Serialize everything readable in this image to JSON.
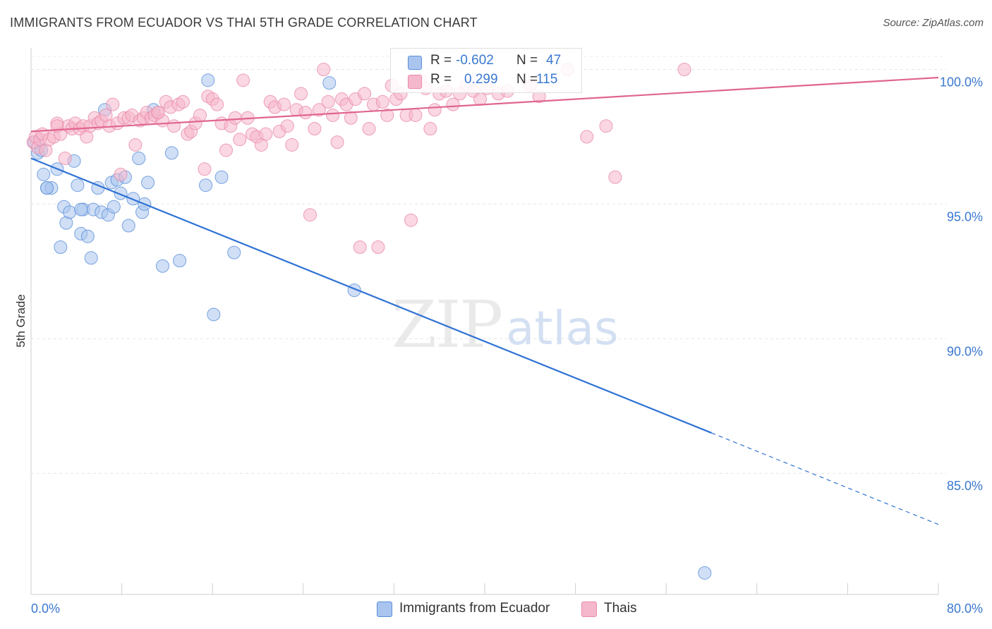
{
  "title": "IMMIGRANTS FROM ECUADOR VS THAI 5TH GRADE CORRELATION CHART",
  "source": "Source: ZipAtlas.com",
  "watermark": {
    "zip": "ZIP",
    "atlas": "atlas"
  },
  "legend_stats": [
    {
      "r_label": "R =",
      "r_value": "-0.602",
      "n_label": "N =",
      "n_value": "47",
      "color": "#a9c4ef"
    },
    {
      "r_label": "R =",
      "r_value": "0.299",
      "n_label": "N =",
      "n_value": "115",
      "color": "#f5b7cb"
    }
  ],
  "bottom_legend": [
    {
      "label": "Immigrants from Ecuador",
      "color": "#a9c4ef"
    },
    {
      "label": "Thais",
      "color": "#f5b7cb"
    }
  ],
  "chart_data": {
    "type": "scatter",
    "ylabel": "5th Grade",
    "xlim": [
      0,
      80
    ],
    "ylim": [
      80.5,
      100.8
    ],
    "x_tick_labels": [
      "0.0%",
      "80.0%"
    ],
    "y_ticks": [
      {
        "value": 85,
        "label": "85.0%"
      },
      {
        "value": 90,
        "label": "90.0%"
      },
      {
        "value": 95,
        "label": "95.0%"
      },
      {
        "value": 100,
        "label": "100.0%"
      }
    ],
    "grid": true,
    "series": [
      {
        "name": "Immigrants from Ecuador",
        "color": "#a9c4ef",
        "stroke": "#5a8fd8",
        "line_color": "#2f72d4",
        "trend": {
          "x0": 0,
          "y0": 96.7,
          "x1": 60,
          "y1": 86.5,
          "dash_to_x": 80,
          "dash_to_y": 83.1
        },
        "points": [
          [
            0.3,
            97.3
          ],
          [
            0.6,
            96.9
          ],
          [
            0.9,
            97.0
          ],
          [
            1.1,
            96.1
          ],
          [
            1.4,
            95.6
          ],
          [
            1.8,
            95.6
          ],
          [
            2.3,
            96.3
          ],
          [
            2.6,
            93.4
          ],
          [
            2.9,
            94.9
          ],
          [
            3.1,
            94.3
          ],
          [
            3.4,
            94.7
          ],
          [
            3.8,
            96.6
          ],
          [
            4.1,
            95.7
          ],
          [
            4.4,
            93.9
          ],
          [
            4.6,
            94.8
          ],
          [
            5.0,
            93.8
          ],
          [
            5.3,
            93.0
          ],
          [
            5.5,
            94.8
          ],
          [
            5.9,
            95.6
          ],
          [
            6.2,
            94.7
          ],
          [
            6.5,
            98.5
          ],
          [
            6.8,
            94.6
          ],
          [
            7.1,
            95.8
          ],
          [
            7.3,
            94.9
          ],
          [
            7.6,
            95.9
          ],
          [
            7.9,
            95.4
          ],
          [
            8.3,
            96.0
          ],
          [
            8.6,
            94.2
          ],
          [
            9.0,
            95.2
          ],
          [
            9.5,
            96.7
          ],
          [
            9.8,
            94.7
          ],
          [
            10.0,
            95.0
          ],
          [
            10.3,
            95.8
          ],
          [
            10.8,
            98.5
          ],
          [
            11.6,
            92.7
          ],
          [
            12.4,
            96.9
          ],
          [
            13.1,
            92.9
          ],
          [
            15.4,
            95.7
          ],
          [
            15.6,
            99.6
          ],
          [
            16.1,
            90.9
          ],
          [
            16.8,
            96.0
          ],
          [
            17.9,
            93.2
          ],
          [
            26.3,
            99.5
          ],
          [
            28.5,
            91.8
          ],
          [
            59.4,
            81.3
          ],
          [
            1.4,
            95.6
          ],
          [
            4.4,
            94.8
          ]
        ]
      },
      {
        "name": "Thais",
        "color": "#f5b7cb",
        "stroke": "#e88aa9",
        "line_color": "#e06590",
        "trend": {
          "x0": 0,
          "y0": 97.7,
          "x1": 80,
          "y1": 99.7
        },
        "points": [
          [
            0.2,
            97.3
          ],
          [
            0.4,
            97.5
          ],
          [
            0.6,
            97.1
          ],
          [
            0.8,
            97.4
          ],
          [
            1.0,
            97.6
          ],
          [
            1.3,
            97.0
          ],
          [
            1.6,
            97.4
          ],
          [
            2.0,
            97.5
          ],
          [
            2.3,
            98.0
          ],
          [
            2.6,
            97.6
          ],
          [
            3.0,
            96.7
          ],
          [
            3.3,
            97.9
          ],
          [
            3.6,
            97.8
          ],
          [
            3.9,
            98.0
          ],
          [
            4.3,
            97.8
          ],
          [
            4.6,
            97.9
          ],
          [
            4.9,
            97.5
          ],
          [
            5.2,
            97.9
          ],
          [
            5.6,
            98.2
          ],
          [
            5.9,
            98.0
          ],
          [
            6.2,
            98.1
          ],
          [
            6.6,
            98.3
          ],
          [
            6.9,
            97.9
          ],
          [
            7.2,
            98.7
          ],
          [
            7.6,
            98.0
          ],
          [
            7.9,
            96.1
          ],
          [
            8.2,
            98.2
          ],
          [
            8.6,
            98.2
          ],
          [
            8.9,
            98.3
          ],
          [
            9.2,
            97.2
          ],
          [
            9.6,
            98.1
          ],
          [
            9.9,
            98.2
          ],
          [
            10.2,
            98.4
          ],
          [
            10.6,
            98.2
          ],
          [
            10.9,
            98.3
          ],
          [
            11.2,
            98.4
          ],
          [
            11.6,
            98.1
          ],
          [
            11.9,
            98.8
          ],
          [
            12.3,
            98.6
          ],
          [
            12.6,
            97.9
          ],
          [
            13.0,
            98.7
          ],
          [
            13.4,
            98.8
          ],
          [
            13.8,
            97.6
          ],
          [
            14.1,
            97.7
          ],
          [
            14.5,
            98.0
          ],
          [
            14.9,
            98.3
          ],
          [
            15.3,
            96.3
          ],
          [
            15.6,
            99.0
          ],
          [
            16.0,
            98.9
          ],
          [
            16.4,
            98.7
          ],
          [
            16.8,
            98.0
          ],
          [
            17.2,
            97.0
          ],
          [
            17.6,
            97.9
          ],
          [
            18.0,
            98.2
          ],
          [
            18.4,
            97.4
          ],
          [
            18.7,
            99.6
          ],
          [
            19.1,
            98.2
          ],
          [
            19.5,
            97.6
          ],
          [
            19.9,
            97.5
          ],
          [
            20.3,
            97.2
          ],
          [
            20.7,
            97.6
          ],
          [
            21.1,
            98.8
          ],
          [
            21.5,
            98.6
          ],
          [
            21.9,
            97.7
          ],
          [
            22.3,
            98.7
          ],
          [
            22.6,
            97.9
          ],
          [
            23.0,
            97.2
          ],
          [
            23.4,
            98.5
          ],
          [
            23.8,
            99.1
          ],
          [
            24.2,
            98.4
          ],
          [
            24.6,
            94.6
          ],
          [
            25.0,
            97.8
          ],
          [
            25.4,
            98.5
          ],
          [
            25.8,
            100.0
          ],
          [
            26.2,
            98.8
          ],
          [
            26.6,
            98.3
          ],
          [
            27.0,
            97.3
          ],
          [
            27.4,
            98.9
          ],
          [
            27.8,
            98.7
          ],
          [
            28.2,
            98.2
          ],
          [
            28.6,
            98.9
          ],
          [
            29.0,
            93.4
          ],
          [
            29.4,
            99.1
          ],
          [
            29.8,
            97.8
          ],
          [
            30.2,
            98.7
          ],
          [
            30.6,
            93.4
          ],
          [
            31.0,
            98.8
          ],
          [
            31.4,
            98.3
          ],
          [
            31.8,
            99.4
          ],
          [
            32.2,
            98.9
          ],
          [
            32.6,
            99.1
          ],
          [
            33.1,
            98.3
          ],
          [
            33.5,
            94.4
          ],
          [
            33.9,
            98.3
          ],
          [
            34.3,
            99.6
          ],
          [
            34.8,
            99.3
          ],
          [
            35.2,
            97.8
          ],
          [
            35.6,
            98.5
          ],
          [
            36.0,
            99.1
          ],
          [
            36.6,
            99.2
          ],
          [
            37.2,
            98.7
          ],
          [
            37.8,
            99.1
          ],
          [
            38.4,
            99.4
          ],
          [
            39.0,
            99.2
          ],
          [
            39.6,
            98.9
          ],
          [
            40.2,
            99.3
          ],
          [
            41.2,
            99.1
          ],
          [
            42.0,
            99.2
          ],
          [
            44.0,
            99.4
          ],
          [
            47.3,
            100.0
          ],
          [
            49.0,
            97.5
          ],
          [
            50.7,
            97.9
          ],
          [
            51.5,
            96.0
          ],
          [
            57.6,
            100.0
          ],
          [
            44.8,
            99.0
          ],
          [
            11.2,
            98.4
          ],
          [
            2.3,
            97.9
          ]
        ]
      }
    ]
  }
}
